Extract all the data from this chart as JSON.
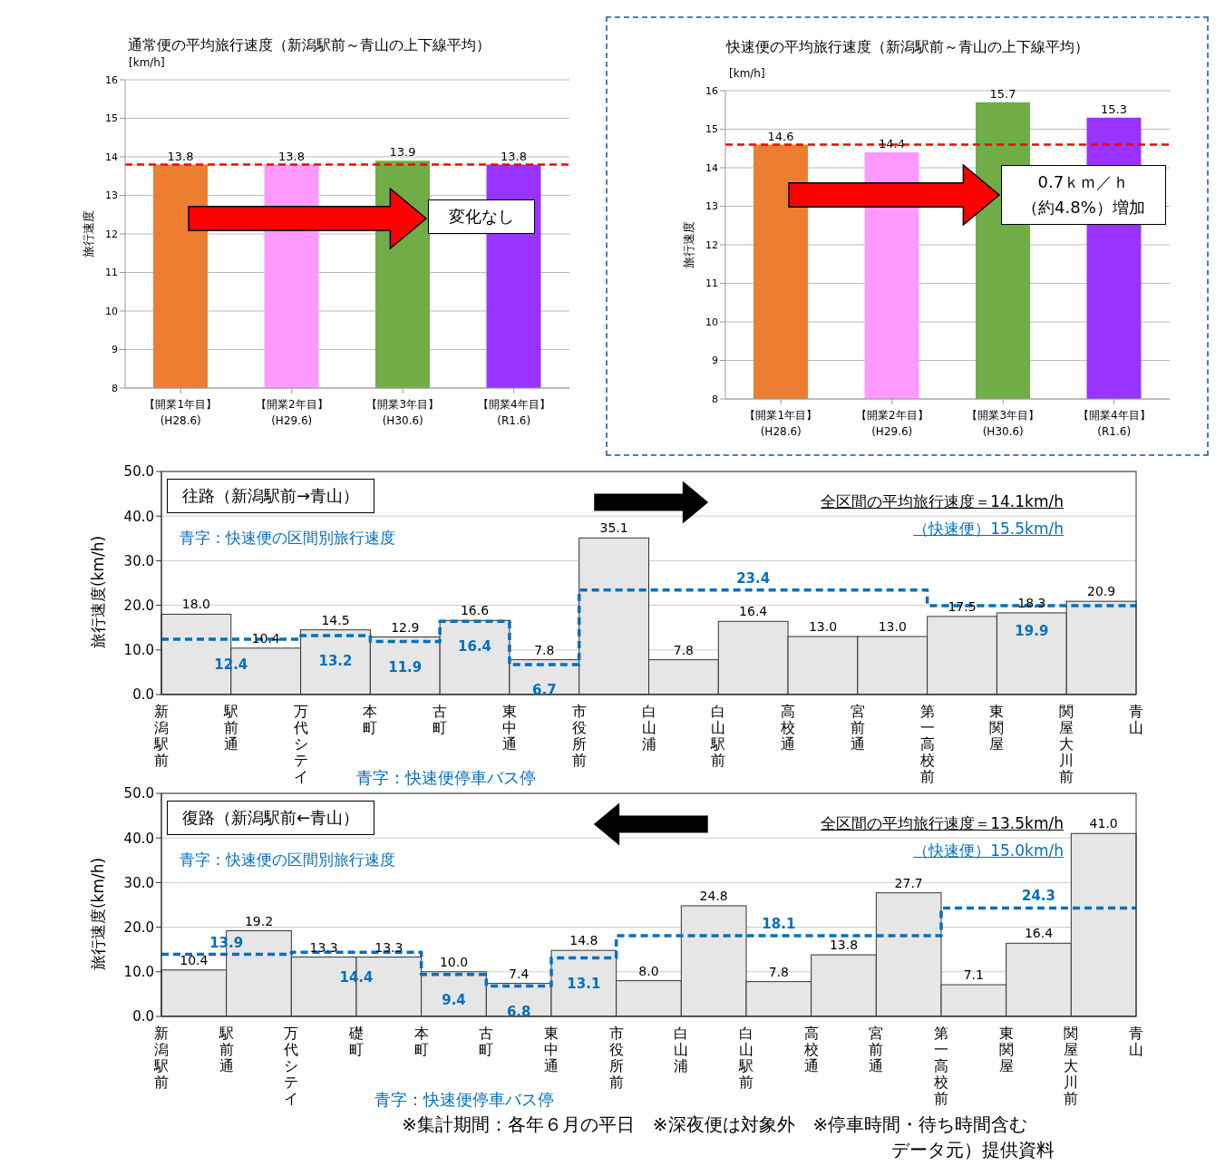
{
  "chart_data": [
    {
      "type": "bar",
      "title": "通常便の平均旅行速度（新潟駅前～青山の上下線平均）",
      "ylabel": "旅行速度",
      "categories": [
        "【開業1年目】\n(H28.6)",
        "【開業2年目】\n(H29.6)",
        "【開業3年目】\n(H30.6)",
        "【開業4年目】\n(R1.6)"
      ],
      "values": [
        13.8,
        13.8,
        13.9,
        13.8
      ],
      "colors": [
        "#ed7d31",
        "#ff99ff",
        "#70ad47",
        "#9933ff"
      ],
      "ylim": [
        8,
        16
      ],
      "yticks": [
        8,
        9,
        10,
        11,
        12,
        13,
        14,
        15,
        16
      ],
      "grid": "y",
      "data_labels": true,
      "ref_lines": [
        {
          "axis": "y",
          "value": 13.8,
          "color": "#ff0000",
          "line_style": "dashed"
        }
      ],
      "annotations": [
        "[km/h]",
        "変化なし"
      ]
    },
    {
      "type": "bar",
      "title": "快速便の平均旅行速度（新潟駅前～青山の上下線平均）",
      "ylabel": "旅行速度",
      "categories": [
        "【開業1年目】\n(H28.6)",
        "【開業2年目】\n(H29.6)",
        "【開業3年目】\n(H30.6)",
        "【開業4年目】\n(R1.6)"
      ],
      "values": [
        14.6,
        14.4,
        15.7,
        15.3
      ],
      "colors": [
        "#ed7d31",
        "#ff99ff",
        "#70ad47",
        "#9933ff"
      ],
      "ylim": [
        8,
        16
      ],
      "yticks": [
        8,
        9,
        10,
        11,
        12,
        13,
        14,
        15,
        16
      ],
      "grid": "y",
      "data_labels": true,
      "ref_lines": [
        {
          "axis": "y",
          "value": 14.6,
          "color": "#ff0000",
          "line_style": "dashed"
        }
      ],
      "annotations": [
        "[km/h]",
        "0.7ｋｍ／ｈ",
        "（約4.8%）増加"
      ]
    },
    {
      "type": "bar",
      "title": "往路（新潟駅前→青山）",
      "ylabel": "旅行速度(km/h)",
      "categories": [
        "新潟駅前",
        null,
        "駅前通",
        null,
        "万代シテイ",
        null,
        "本町",
        null,
        "古町",
        null,
        "東中通",
        null,
        "市役所前",
        null,
        "白山浦",
        null,
        "白山駅前",
        null,
        "高校通",
        null,
        "宮前通",
        null,
        "第一高校前",
        null,
        "東関屋",
        null,
        "関屋大川前",
        null,
        "青山"
      ],
      "ylim": [
        0,
        50
      ],
      "yticks": [
        {
          "value": 0,
          "label": "0.0"
        },
        {
          "value": 10,
          "label": "10.0"
        },
        {
          "value": 20,
          "label": "20.0"
        },
        {
          "value": 30,
          "label": "30.0"
        },
        {
          "value": 40,
          "label": "40.0"
        },
        {
          "value": 50,
          "label": "50.0"
        }
      ],
      "grid": "y",
      "series": [
        {
          "type": "bar",
          "color": "#e6e6e6",
          "values": [
            null,
            18.0,
            null,
            10.4,
            null,
            14.5,
            null,
            12.9,
            null,
            16.6,
            null,
            7.8,
            null,
            35.1,
            null,
            7.8,
            null,
            16.4,
            null,
            13.0,
            null,
            13.0,
            null,
            17.5,
            null,
            18.3,
            null,
            20.9,
            null
          ],
          "value_labels": [
            null,
            "18.0",
            null,
            "10.4",
            null,
            "14.5",
            null,
            "12.9",
            null,
            "16.6",
            null,
            "7.8",
            null,
            "35.1",
            null,
            "7.8",
            null,
            "16.4",
            null,
            "13.0",
            null,
            "13.0",
            null,
            "17.5",
            null,
            "18.3",
            null,
            "20.9",
            null
          ]
        },
        {
          "type": "step",
          "color": "#0070c0",
          "line_style": "dashed",
          "values": [
            12.4,
            12.4,
            12.4,
            12.4,
            13.2,
            13.2,
            11.9,
            11.9,
            16.4,
            16.4,
            6.7,
            6.7,
            23.4,
            23.4,
            23.4,
            23.4,
            23.4,
            23.4,
            23.4,
            23.4,
            23.4,
            23.4,
            19.9,
            19.9,
            19.9,
            19.9,
            19.9,
            19.9,
            19.9
          ],
          "value_labels": [
            null,
            null,
            "12.4",
            null,
            null,
            "13.2",
            null,
            "11.9",
            null,
            "16.4",
            null,
            "6.7",
            null,
            null,
            null,
            null,
            null,
            "23.4",
            null,
            null,
            null,
            null,
            null,
            null,
            null,
            "19.9",
            null,
            null,
            null
          ]
        }
      ],
      "annotations": [
        "青字：快速便の区間別旅行速度",
        "全区間の平均旅行速度＝14.1km/h",
        "（快速便）15.5km/h",
        "青字：快速便停車バス停"
      ]
    },
    {
      "type": "bar",
      "title": "復路（新潟駅前←青山）",
      "ylabel": "旅行速度(km/h)",
      "categories": [
        "新潟駅前",
        null,
        "駅前通",
        null,
        "万代シテイ",
        null,
        "礎町",
        null,
        "本町",
        null,
        "古町",
        null,
        "東中通",
        null,
        "市役所前",
        null,
        "白山浦",
        null,
        "白山駅前",
        null,
        "高校通",
        null,
        "宮前通",
        null,
        "第一高校前",
        null,
        "東関屋",
        null,
        "関屋大川前",
        null,
        "青山"
      ],
      "ylim": [
        0,
        50
      ],
      "yticks": [
        {
          "value": 0,
          "label": "0.0"
        },
        {
          "value": 10,
          "label": "10.0"
        },
        {
          "value": 20,
          "label": "20.0"
        },
        {
          "value": 30,
          "label": "30.0"
        },
        {
          "value": 40,
          "label": "40.0"
        },
        {
          "value": 50,
          "label": "50.0"
        }
      ],
      "grid": "y",
      "series": [
        {
          "type": "bar",
          "color": "#e6e6e6",
          "values": [
            null,
            10.4,
            null,
            19.2,
            null,
            13.3,
            null,
            13.3,
            null,
            10.0,
            null,
            7.4,
            null,
            14.8,
            null,
            8.0,
            null,
            24.8,
            null,
            7.8,
            null,
            13.8,
            null,
            27.7,
            null,
            7.1,
            null,
            16.4,
            null,
            41.0,
            null
          ],
          "value_labels": [
            null,
            "10.4",
            null,
            "19.2",
            null,
            "13.3",
            null,
            "13.3",
            null,
            "10.0",
            null,
            "7.4",
            null,
            "14.8",
            null,
            "8.0",
            null,
            "24.8",
            null,
            "7.8",
            null,
            "13.8",
            null,
            "27.7",
            null,
            "7.1",
            null,
            "16.4",
            null,
            "41.0",
            null
          ]
        },
        {
          "type": "step",
          "color": "#0070c0",
          "line_style": "dashed",
          "values": [
            13.9,
            13.9,
            13.9,
            13.9,
            14.4,
            14.4,
            14.4,
            14.4,
            9.4,
            9.4,
            6.8,
            6.8,
            13.1,
            13.1,
            18.1,
            18.1,
            18.1,
            18.1,
            18.1,
            18.1,
            18.1,
            18.1,
            18.1,
            18.1,
            24.3,
            24.3,
            24.3,
            24.3,
            24.3,
            24.3,
            24.3
          ],
          "value_labels": [
            null,
            null,
            "13.9",
            null,
            null,
            null,
            "14.4",
            null,
            null,
            "9.4",
            null,
            "6.8",
            null,
            "13.1",
            null,
            null,
            null,
            null,
            null,
            "18.1",
            null,
            null,
            null,
            null,
            null,
            null,
            null,
            "24.3",
            null,
            null,
            null
          ]
        }
      ],
      "annotations": [
        "青字：快速便の区間別旅行速度",
        "全区間の平均旅行速度＝13.5km/h",
        "（快速便）15.0km/h",
        "青字：快速便停車バス停",
        "※集計期間：各年６月の平日　※深夜便は対象外　※停車時間・待ち時間含む",
        "データ元）提供資料"
      ]
    }
  ]
}
